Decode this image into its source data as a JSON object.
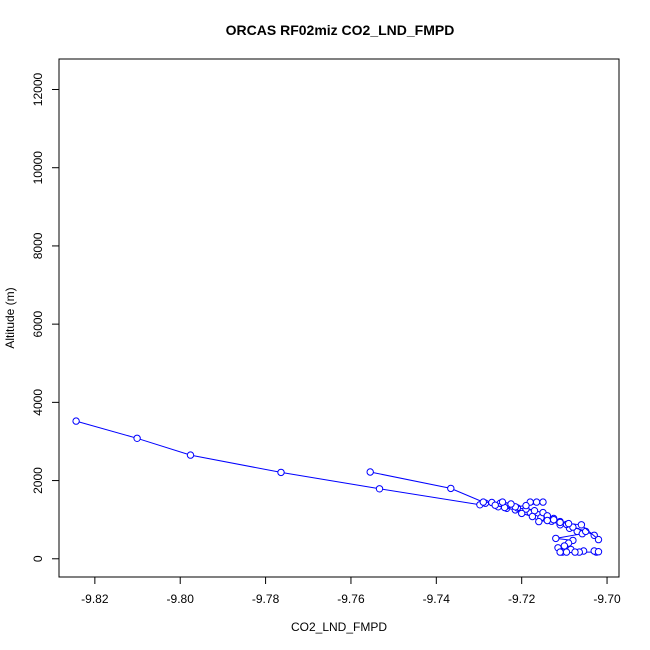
{
  "chart_data": {
    "type": "line",
    "title": "ORCAS RF02miz CO2_LND_FMPD",
    "xlabel": "CO2_LND_FMPD",
    "ylabel": "Altitude (m)",
    "xlim": [
      -9.8284,
      -9.6972
    ],
    "ylim": [
      -466,
      12780
    ],
    "x_ticks": [
      -9.82,
      -9.8,
      -9.78,
      -9.76,
      -9.74,
      -9.72,
      -9.7
    ],
    "x_tick_labels": [
      "-9.82",
      "-9.80",
      "-9.78",
      "-9.76",
      "-9.74",
      "-9.72",
      "-9.70"
    ],
    "y_ticks": [
      0,
      2000,
      4000,
      6000,
      8000,
      10000,
      12000
    ],
    "y_tick_labels": [
      "0",
      "2000",
      "4000",
      "6000",
      "8000",
      "10000",
      "12000"
    ],
    "grid": false,
    "color": "#0000ff",
    "series": [
      {
        "x": [
          -9.8244,
          -9.8101,
          -9.7976,
          -9.7764,
          -9.7533,
          -9.7298,
          -9.7285,
          -9.7255,
          -9.7235,
          -9.7215,
          -9.718,
          -9.7155,
          -9.713,
          -9.711,
          -9.7088,
          -9.707,
          -9.7058,
          -9.712,
          -9.708,
          -9.709,
          -9.71,
          -9.7115,
          -9.7085,
          -9.7055,
          -9.7065,
          -9.7105,
          -9.7095,
          -9.7075,
          -9.711,
          -9.7025,
          -9.703,
          -9.702
        ],
        "y": [
          3520,
          3080,
          2650,
          2210,
          1790,
          1380,
          1420,
          1330,
          1290,
          1250,
          1180,
          1050,
          960,
          870,
          780,
          700,
          640,
          520,
          470,
          400,
          330,
          280,
          240,
          200,
          170,
          170,
          170,
          170,
          170,
          170,
          200,
          180
        ]
      },
      {
        "x": [
          -9.7555,
          -9.7366,
          -9.729,
          -9.727,
          -9.725,
          -9.7235,
          -9.721,
          -9.719,
          -9.717,
          -9.715,
          -9.714,
          -9.7125,
          -9.711,
          -9.7095,
          -9.708,
          -9.705,
          -9.703
        ],
        "y": [
          2220,
          1800,
          1450,
          1440,
          1420,
          1350,
          1300,
          1270,
          1230,
          1180,
          1100,
          1030,
          950,
          880,
          810,
          700,
          600
        ]
      },
      {
        "x": [
          -9.718,
          -9.7165,
          -9.715,
          -9.719,
          -9.7215,
          -9.724,
          -9.7262,
          -9.7245,
          -9.7225,
          -9.72,
          -9.7175,
          -9.716,
          -9.714,
          -9.7125,
          -9.711,
          -9.709,
          -9.706,
          -9.702
        ],
        "y": [
          1450,
          1450,
          1450,
          1360,
          1330,
          1310,
          1370,
          1450,
          1400,
          1160,
          1080,
          950,
          980,
          1000,
          930,
          900,
          870,
          490
        ]
      }
    ]
  }
}
